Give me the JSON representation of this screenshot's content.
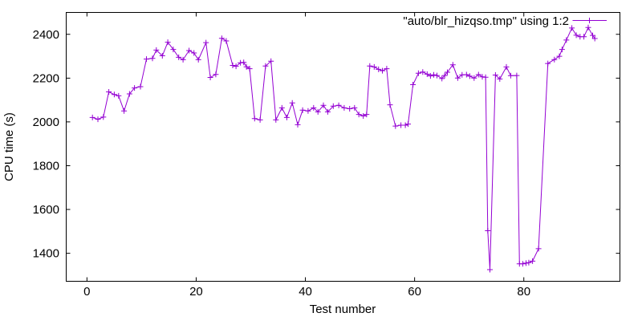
{
  "chart_data": {
    "type": "line",
    "title": "",
    "legend": "\"auto/blr_hizqso.tmp\" using 1:2",
    "xlabel": "Test number",
    "ylabel": "CPU time (s)",
    "xlim": [
      -3.8,
      97.6
    ],
    "ylim": [
      1272,
      2500
    ],
    "xticks": [
      0,
      20,
      40,
      60,
      80
    ],
    "yticks": [
      1400,
      1600,
      1800,
      2000,
      2200,
      2400
    ],
    "grid": false,
    "legend_position": "top-right-inside",
    "line_color": "#9400d3",
    "frame_color": "#000000",
    "marker": "plus",
    "points": [
      [
        1,
        2020
      ],
      [
        2,
        2012
      ],
      [
        3,
        2022
      ],
      [
        4,
        2137
      ],
      [
        5,
        2125
      ],
      [
        5.8,
        2119
      ],
      [
        6.8,
        2050
      ],
      [
        7.8,
        2128
      ],
      [
        8.7,
        2155
      ],
      [
        9.8,
        2161
      ],
      [
        10.9,
        2287
      ],
      [
        12,
        2290
      ],
      [
        12.7,
        2328
      ],
      [
        13.8,
        2302
      ],
      [
        14.8,
        2364
      ],
      [
        15.8,
        2331
      ],
      [
        16.8,
        2295
      ],
      [
        17.6,
        2284
      ],
      [
        18.7,
        2326
      ],
      [
        19.6,
        2315
      ],
      [
        20.4,
        2284
      ],
      [
        21.8,
        2362
      ],
      [
        22.6,
        2203
      ],
      [
        23.6,
        2217
      ],
      [
        24.7,
        2382
      ],
      [
        25.5,
        2370
      ],
      [
        26.7,
        2258
      ],
      [
        27.3,
        2254
      ],
      [
        28.1,
        2270
      ],
      [
        28.7,
        2272
      ],
      [
        29.2,
        2252
      ],
      [
        29.8,
        2243
      ],
      [
        30.7,
        2015
      ],
      [
        31.7,
        2009
      ],
      [
        32.7,
        2255
      ],
      [
        33.7,
        2277
      ],
      [
        34.6,
        2009
      ],
      [
        35.7,
        2064
      ],
      [
        36.6,
        2020
      ],
      [
        37.6,
        2087
      ],
      [
        38.6,
        1987
      ],
      [
        39.5,
        2054
      ],
      [
        40.5,
        2050
      ],
      [
        41.5,
        2064
      ],
      [
        42.3,
        2046
      ],
      [
        43.3,
        2076
      ],
      [
        44.1,
        2046
      ],
      [
        45.1,
        2072
      ],
      [
        46.1,
        2076
      ],
      [
        47.1,
        2064
      ],
      [
        48.1,
        2060
      ],
      [
        49,
        2064
      ],
      [
        49.8,
        2034
      ],
      [
        50.6,
        2027
      ],
      [
        51.2,
        2034
      ],
      [
        51.8,
        2255
      ],
      [
        52.6,
        2251
      ],
      [
        53.4,
        2240
      ],
      [
        54.1,
        2234
      ],
      [
        54.9,
        2243
      ],
      [
        55.5,
        2078
      ],
      [
        56.5,
        1981
      ],
      [
        57.5,
        1985
      ],
      [
        58.3,
        1985
      ],
      [
        58.8,
        1990
      ],
      [
        59.7,
        2170
      ],
      [
        60.7,
        2222
      ],
      [
        61.5,
        2228
      ],
      [
        62.3,
        2218
      ],
      [
        62.9,
        2210
      ],
      [
        63.5,
        2215
      ],
      [
        64.1,
        2212
      ],
      [
        65,
        2198
      ],
      [
        65.5,
        2212
      ],
      [
        66,
        2227
      ],
      [
        67,
        2261
      ],
      [
        67.9,
        2200
      ],
      [
        68.7,
        2215
      ],
      [
        69.5,
        2216
      ],
      [
        70.1,
        2209
      ],
      [
        70.9,
        2200
      ],
      [
        71.7,
        2216
      ],
      [
        72.4,
        2206
      ],
      [
        73,
        2204
      ],
      [
        73.4,
        1503
      ],
      [
        73.8,
        1325
      ],
      [
        74.8,
        2214
      ],
      [
        75.6,
        2196
      ],
      [
        76.8,
        2251
      ],
      [
        77.6,
        2211
      ],
      [
        78.7,
        2212
      ],
      [
        79.2,
        1352
      ],
      [
        79.8,
        1352
      ],
      [
        80.4,
        1355
      ],
      [
        80.9,
        1357
      ],
      [
        81.6,
        1364
      ],
      [
        82.7,
        1421
      ],
      [
        84.4,
        2267
      ],
      [
        85.6,
        2285
      ],
      [
        86.5,
        2300
      ],
      [
        87,
        2331
      ],
      [
        87.8,
        2374
      ],
      [
        88.8,
        2429
      ],
      [
        89.6,
        2396
      ],
      [
        90.3,
        2389
      ],
      [
        91,
        2389
      ],
      [
        91.8,
        2431
      ],
      [
        92.6,
        2395
      ],
      [
        93,
        2381
      ]
    ]
  }
}
